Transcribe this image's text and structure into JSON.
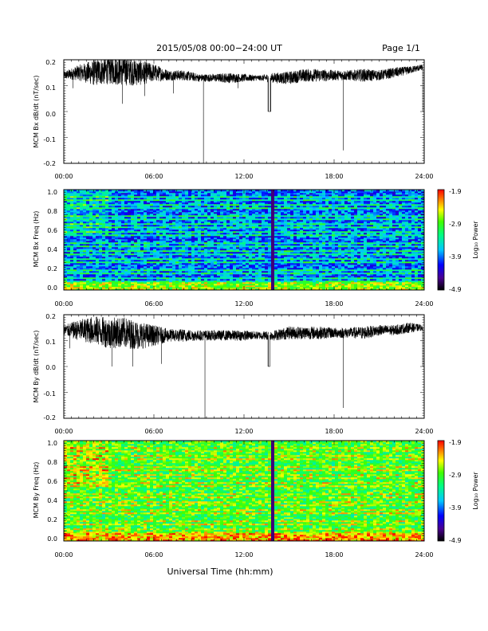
{
  "header": {
    "title": "2015/05/08  00:00−24:00 UT",
    "page": "Page 1/1"
  },
  "xlabel": "Universal Time (hh:mm)",
  "colors": {
    "line": "#000000"
  },
  "chart_data": [
    {
      "type": "line",
      "name": "bx-dbdt",
      "ylabel": "MCM Bx dB/dt (nT/sec)",
      "xlim": [
        0,
        24
      ],
      "ylim": [
        -0.2,
        0.2
      ],
      "x_ticks": [
        "00:00",
        "06:00",
        "12:00",
        "18:00",
        "24:00"
      ],
      "y_ticks": [
        "0.2",
        "0.1",
        "0.0",
        "-0.1",
        "-0.2"
      ],
      "y_tick_values": [
        0.2,
        0.1,
        0.0,
        -0.1,
        -0.2
      ],
      "baseline": [
        [
          0,
          0.14
        ],
        [
          1,
          0.15
        ],
        [
          2,
          0.15
        ],
        [
          3,
          0.16
        ],
        [
          4,
          0.16
        ],
        [
          5,
          0.15
        ],
        [
          6,
          0.15
        ],
        [
          7,
          0.14
        ],
        [
          8,
          0.14
        ],
        [
          9,
          0.13
        ],
        [
          10,
          0.13
        ],
        [
          11,
          0.13
        ],
        [
          12,
          0.13
        ],
        [
          13,
          0.13
        ],
        [
          13.7,
          0.13
        ],
        [
          14,
          0.13
        ],
        [
          15,
          0.13
        ],
        [
          16,
          0.14
        ],
        [
          17,
          0.14
        ],
        [
          18,
          0.14
        ],
        [
          19,
          0.14
        ],
        [
          20,
          0.14
        ],
        [
          21,
          0.14
        ],
        [
          22,
          0.15
        ],
        [
          23,
          0.16
        ],
        [
          23.8,
          0.17
        ]
      ],
      "noise": [
        [
          0,
          0.015
        ],
        [
          1,
          0.03
        ],
        [
          2,
          0.05
        ],
        [
          3,
          0.055
        ],
        [
          4,
          0.06
        ],
        [
          5,
          0.05
        ],
        [
          6,
          0.035
        ],
        [
          7,
          0.02
        ],
        [
          8,
          0.02
        ],
        [
          9,
          0.015
        ],
        [
          10,
          0.015
        ],
        [
          11,
          0.02
        ],
        [
          12,
          0.015
        ],
        [
          13,
          0.01
        ],
        [
          14,
          0.02
        ],
        [
          15,
          0.025
        ],
        [
          16,
          0.025
        ],
        [
          17,
          0.025
        ],
        [
          18,
          0.02
        ],
        [
          19,
          0.02
        ],
        [
          20,
          0.025
        ],
        [
          21,
          0.02
        ],
        [
          22,
          0.02
        ],
        [
          23,
          0.015
        ],
        [
          24,
          0.01
        ]
      ],
      "spikes": [
        [
          0.6,
          0.09
        ],
        [
          3.9,
          0.03
        ],
        [
          5.4,
          0.06
        ],
        [
          7.3,
          0.07
        ],
        [
          9.3,
          -0.2
        ],
        [
          11.6,
          0.09
        ],
        [
          13.6,
          0.0
        ],
        [
          13.75,
          0.0
        ],
        [
          18.6,
          -0.15
        ],
        [
          23.9,
          0.0
        ]
      ],
      "gaps": [
        [
          13.62,
          13.78
        ],
        [
          23.9,
          24
        ]
      ]
    },
    {
      "type": "heatmap",
      "name": "bx-spectrogram",
      "ylabel": "MCM Bx Freq (Hz)",
      "xlim": [
        0,
        24
      ],
      "ylim": [
        0.0,
        1.0
      ],
      "x_ticks": [
        "00:00",
        "06:00",
        "12:00",
        "18:00",
        "24:00"
      ],
      "y_ticks": [
        "1.0",
        "0.8",
        "0.6",
        "0.4",
        "0.2",
        "0.0"
      ],
      "y_tick_values": [
        1.0,
        0.8,
        0.6,
        0.4,
        0.2,
        0.0
      ],
      "colorbar": {
        "label": "Log₁₀ Power",
        "ticks": [
          "-1.9",
          "-2.9",
          "-3.9",
          "-4.9"
        ],
        "tick_values": [
          -1.9,
          -2.9,
          -3.9,
          -4.9
        ],
        "range": [
          -4.9,
          -1.9
        ]
      },
      "background_power": -3.9,
      "band_power": -3.3,
      "low_freq_power": -2.7,
      "band_spacing_hz": 0.0385,
      "dark_lines_utc": [
        13.85,
        13.95
      ]
    },
    {
      "type": "line",
      "name": "by-dbdt",
      "ylabel": "MCM By dB/dt (nT/sec)",
      "xlim": [
        0,
        24
      ],
      "ylim": [
        -0.2,
        0.2
      ],
      "x_ticks": [
        "00:00",
        "06:00",
        "12:00",
        "18:00",
        "24:00"
      ],
      "y_ticks": [
        "0.2",
        "0.1",
        "0.0",
        "-0.1",
        "-0.2"
      ],
      "y_tick_values": [
        0.2,
        0.1,
        0.0,
        -0.1,
        -0.2
      ],
      "baseline": [
        [
          0,
          0.14
        ],
        [
          1,
          0.14
        ],
        [
          2,
          0.14
        ],
        [
          3,
          0.13
        ],
        [
          4,
          0.13
        ],
        [
          5,
          0.12
        ],
        [
          6,
          0.12
        ],
        [
          7,
          0.12
        ],
        [
          8,
          0.12
        ],
        [
          9,
          0.12
        ],
        [
          10,
          0.12
        ],
        [
          11,
          0.12
        ],
        [
          12,
          0.12
        ],
        [
          13,
          0.12
        ],
        [
          14,
          0.12
        ],
        [
          15,
          0.13
        ],
        [
          16,
          0.13
        ],
        [
          17,
          0.13
        ],
        [
          18,
          0.13
        ],
        [
          19,
          0.13
        ],
        [
          20,
          0.13
        ],
        [
          21,
          0.14
        ],
        [
          22,
          0.14
        ],
        [
          23,
          0.15
        ],
        [
          23.8,
          0.15
        ]
      ],
      "noise": [
        [
          0,
          0.02
        ],
        [
          1,
          0.04
        ],
        [
          2,
          0.055
        ],
        [
          3,
          0.06
        ],
        [
          4,
          0.06
        ],
        [
          5,
          0.055
        ],
        [
          6,
          0.04
        ],
        [
          7,
          0.025
        ],
        [
          8,
          0.025
        ],
        [
          9,
          0.02
        ],
        [
          10,
          0.02
        ],
        [
          11,
          0.02
        ],
        [
          12,
          0.02
        ],
        [
          13,
          0.015
        ],
        [
          14,
          0.02
        ],
        [
          15,
          0.025
        ],
        [
          16,
          0.025
        ],
        [
          17,
          0.025
        ],
        [
          18,
          0.02
        ],
        [
          19,
          0.02
        ],
        [
          20,
          0.025
        ],
        [
          21,
          0.02
        ],
        [
          22,
          0.02
        ],
        [
          23,
          0.02
        ],
        [
          24,
          0.01
        ]
      ],
      "spikes": [
        [
          0.4,
          0.07
        ],
        [
          3.2,
          0.0
        ],
        [
          4.6,
          0.0
        ],
        [
          6.5,
          0.01
        ],
        [
          9.4,
          -0.2
        ],
        [
          13.6,
          0.0
        ],
        [
          18.6,
          -0.16
        ],
        [
          23.9,
          0.0
        ]
      ],
      "gaps": [
        [
          13.62,
          13.72
        ],
        [
          23.9,
          24
        ]
      ]
    },
    {
      "type": "heatmap",
      "name": "by-spectrogram",
      "ylabel": "MCM By Freq (Hz)",
      "xlim": [
        0,
        24
      ],
      "ylim": [
        0.0,
        1.0
      ],
      "x_ticks": [
        "00:00",
        "06:00",
        "12:00",
        "18:00",
        "24:00"
      ],
      "y_ticks": [
        "1.0",
        "0.8",
        "0.6",
        "0.4",
        "0.2",
        "0.0"
      ],
      "y_tick_values": [
        1.0,
        0.8,
        0.6,
        0.4,
        0.2,
        0.0
      ],
      "colorbar": {
        "label": "Log₁₀ Power",
        "ticks": [
          "-1.9",
          "-2.9",
          "-3.9",
          "-4.9"
        ],
        "tick_values": [
          -1.9,
          -2.9,
          -3.9,
          -4.9
        ],
        "range": [
          -4.9,
          -1.9
        ]
      },
      "background_power": -3.0,
      "band_power": -2.6,
      "low_freq_power": -2.3,
      "band_spacing_hz": 0.0385,
      "dark_lines_utc": [
        13.9
      ]
    }
  ]
}
